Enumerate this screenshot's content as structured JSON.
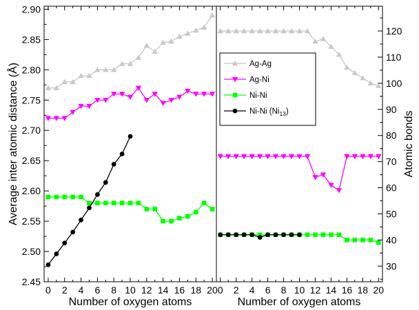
{
  "chart_data": [
    {
      "type": "line",
      "panel": "left",
      "xlabel": "Number of oxygen atoms",
      "ylabel": "Average inter atomic distance (Å)",
      "xlim": [
        -0.5,
        20.5
      ],
      "ylim": [
        2.45,
        2.905
      ],
      "x_ticks": [
        "0",
        "2",
        "4",
        "6",
        "8",
        "10",
        "12",
        "14",
        "16",
        "18",
        "20"
      ],
      "y_ticks": [
        "2.45",
        "2.50",
        "2.55",
        "2.60",
        "2.65",
        "2.70",
        "2.75",
        "2.80",
        "2.85",
        "2.90"
      ],
      "series": [
        {
          "name": "Ag-Ag",
          "color": "#c8c8c8",
          "marker": "triangle-up",
          "x": [
            0,
            1,
            2,
            3,
            4,
            5,
            6,
            7,
            8,
            9,
            10,
            11,
            12,
            13,
            14,
            15,
            16,
            17,
            18,
            19,
            20
          ],
          "values": [
            2.77,
            2.77,
            2.78,
            2.78,
            2.79,
            2.79,
            2.8,
            2.8,
            2.8,
            2.81,
            2.81,
            2.82,
            2.84,
            2.83,
            2.845,
            2.847,
            2.855,
            2.86,
            2.865,
            2.87,
            2.89
          ]
        },
        {
          "name": "Ag-Ni",
          "color": "#ff00ff",
          "marker": "triangle-down",
          "x": [
            0,
            1,
            2,
            3,
            4,
            5,
            6,
            7,
            8,
            9,
            10,
            11,
            12,
            13,
            14,
            15,
            16,
            17,
            18,
            19,
            20
          ],
          "values": [
            2.72,
            2.72,
            2.72,
            2.73,
            2.74,
            2.74,
            2.75,
            2.75,
            2.76,
            2.76,
            2.755,
            2.77,
            2.75,
            2.76,
            2.745,
            2.75,
            2.755,
            2.765,
            2.76,
            2.76,
            2.76
          ]
        },
        {
          "name": "Ni-Ni",
          "color": "#00ff00",
          "marker": "square",
          "x": [
            0,
            1,
            2,
            3,
            4,
            5,
            6,
            7,
            8,
            9,
            10,
            11,
            12,
            13,
            14,
            15,
            16,
            17,
            18,
            19,
            20
          ],
          "values": [
            2.59,
            2.59,
            2.59,
            2.59,
            2.59,
            2.58,
            2.58,
            2.58,
            2.58,
            2.58,
            2.58,
            2.58,
            2.57,
            2.57,
            2.55,
            2.55,
            2.555,
            2.558,
            2.565,
            2.58,
            2.57
          ]
        },
        {
          "name": "Ni-Ni (Ni13)",
          "color": "#000000",
          "marker": "circle",
          "x": [
            0,
            1,
            2,
            3,
            4,
            5,
            6,
            7,
            8,
            9,
            10
          ],
          "values": [
            2.478,
            2.496,
            2.514,
            2.532,
            2.552,
            2.572,
            2.594,
            2.614,
            2.644,
            2.661,
            2.69
          ]
        }
      ]
    },
    {
      "type": "line",
      "panel": "right",
      "xlabel": "Number of oxygen atoms",
      "ylabel": "Atomic bonds",
      "xlim": [
        -0.5,
        20.5
      ],
      "ylim": [
        24,
        129.5
      ],
      "x_ticks": [
        "0",
        "2",
        "4",
        "6",
        "8",
        "10",
        "12",
        "14",
        "16",
        "18",
        "20"
      ],
      "y_ticks": [
        "30",
        "40",
        "50",
        "60",
        "70",
        "80",
        "90",
        "100",
        "110",
        "120"
      ],
      "legend_position": "top-left",
      "series": [
        {
          "name": "Ag-Ag",
          "color": "#c8c8c8",
          "marker": "triangle-up",
          "x": [
            0,
            1,
            2,
            3,
            4,
            5,
            6,
            7,
            8,
            9,
            10,
            11,
            12,
            13,
            14,
            15,
            16,
            17,
            18,
            19,
            20
          ],
          "values": [
            120,
            120,
            120,
            120,
            120,
            120,
            120,
            120,
            120,
            120,
            120,
            120,
            116,
            117,
            114,
            111,
            106,
            104,
            102,
            100,
            99
          ]
        },
        {
          "name": "Ag-Ni",
          "color": "#ff00ff",
          "marker": "triangle-down",
          "x": [
            0,
            1,
            2,
            3,
            4,
            5,
            6,
            7,
            8,
            9,
            10,
            11,
            12,
            13,
            14,
            15,
            16,
            17,
            18,
            19,
            20
          ],
          "values": [
            72,
            72,
            72,
            72,
            72,
            72,
            72,
            72,
            72,
            72,
            72,
            72,
            64,
            65,
            61,
            59,
            72,
            72,
            72,
            72,
            72
          ]
        },
        {
          "name": "Ni-Ni",
          "color": "#00ff00",
          "marker": "square",
          "x": [
            0,
            1,
            2,
            3,
            4,
            5,
            6,
            7,
            8,
            9,
            10,
            11,
            12,
            13,
            14,
            15,
            16,
            17,
            18,
            19,
            20
          ],
          "values": [
            42,
            42,
            42,
            42,
            42,
            42,
            42,
            42,
            42,
            42,
            42,
            42,
            42,
            42,
            42,
            42,
            40,
            40,
            40,
            40,
            39
          ]
        },
        {
          "name": "Ni-Ni (Ni13)",
          "color": "#000000",
          "marker": "circle",
          "x": [
            0,
            1,
            2,
            3,
            4,
            5,
            6,
            7,
            8,
            9,
            10
          ],
          "values": [
            42,
            42,
            42,
            42,
            42,
            41,
            42,
            42,
            42,
            42,
            42
          ]
        }
      ]
    }
  ],
  "legend": {
    "items": [
      {
        "label": "Ag-Ag",
        "color": "#c8c8c8",
        "marker": "triangle-up"
      },
      {
        "label": "Ag-Ni",
        "color": "#ff00ff",
        "marker": "triangle-down"
      },
      {
        "label": "Ni-Ni",
        "color": "#00ff00",
        "marker": "square"
      },
      {
        "label": "Ni-Ni (Ni",
        "subscript": "13",
        "suffix": ")",
        "color": "#000000",
        "marker": "circle"
      }
    ]
  }
}
